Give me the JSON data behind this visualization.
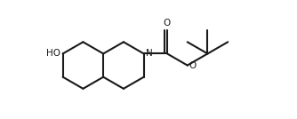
{
  "bg": "#ffffff",
  "lc": "#1a1a1a",
  "lw": 1.5,
  "fs": 7.5,
  "xlim": [
    -0.5,
    10.5
  ],
  "ylim": [
    -2.3,
    2.8
  ],
  "figw": 3.34,
  "figh": 1.34,
  "dpi": 100
}
